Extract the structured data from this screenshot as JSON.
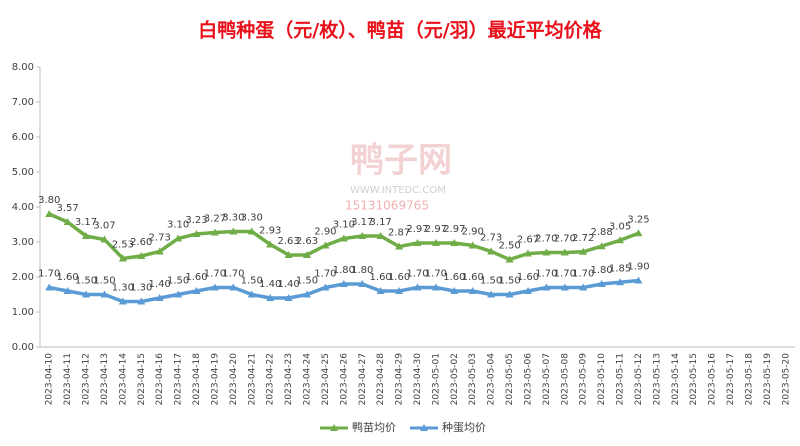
{
  "chart_data": {
    "type": "line",
    "title": "白鸭种蛋（元/枚）、鸭苗（元/羽）最近平均价格",
    "watermark": [
      "鸭子网",
      "WWW.INTEDC.COM",
      "15131069765"
    ],
    "categories": [
      "2023-04-10",
      "2023-04-11",
      "2023-04-12",
      "2023-04-13",
      "2023-04-14",
      "2023-04-15",
      "2023-04-16",
      "2023-04-17",
      "2023-04-18",
      "2023-04-19",
      "2023-04-20",
      "2023-04-21",
      "2023-04-22",
      "2023-04-23",
      "2023-04-24",
      "2023-04-25",
      "2023-04-26",
      "2023-04-27",
      "2023-04-28",
      "2023-04-29",
      "2023-04-30",
      "2023-05-01",
      "2023-05-02",
      "2023-05-03",
      "2023-05-04",
      "2023-05-05",
      "2023-05-06",
      "2023-05-07",
      "2023-05-08",
      "2023-05-09",
      "2023-05-10",
      "2023-05-11",
      "2023-05-12",
      "2023-05-13",
      "2023-05-14",
      "2023-05-15",
      "2023-05-16",
      "2023-05-17",
      "2023-05-18",
      "2023-05-19",
      "2023-05-20"
    ],
    "series": [
      {
        "name": "鸭苗均价",
        "color": "#70ad47",
        "values": [
          3.8,
          3.57,
          3.17,
          3.07,
          2.53,
          2.6,
          2.73,
          3.1,
          3.23,
          3.27,
          3.3,
          3.3,
          2.93,
          2.63,
          2.63,
          2.9,
          3.1,
          3.17,
          3.17,
          2.87,
          2.97,
          2.97,
          2.97,
          2.9,
          2.73,
          2.5,
          2.67,
          2.7,
          2.7,
          2.72,
          2.88,
          3.05,
          3.25,
          null,
          null,
          null,
          null,
          null,
          null,
          null,
          null
        ],
        "value_labels": [
          "3.80",
          "3.57",
          "3.17",
          "3.07",
          "2.53",
          "2.60",
          "2.73",
          "3.10",
          "3.23",
          "3.27",
          "3.30",
          "3.30",
          "2.93",
          "2.63",
          "2.63",
          "2.90",
          "3.10",
          "3.17",
          "3.17",
          "2.87",
          "2.97",
          "2.97",
          "2.97",
          "2.90",
          "2.73",
          "2.50",
          "2.67",
          "2.70",
          "2.70",
          "2.72",
          "2.88",
          "3.05",
          "3.25",
          null,
          null,
          null,
          null,
          null,
          null,
          null,
          null
        ]
      },
      {
        "name": "种蛋均价",
        "color": "#5b9bd5",
        "values": [
          1.7,
          1.6,
          1.5,
          1.5,
          1.3,
          1.3,
          1.4,
          1.5,
          1.6,
          1.7,
          1.7,
          1.5,
          1.4,
          1.4,
          1.5,
          1.7,
          1.8,
          1.8,
          1.6,
          1.6,
          1.7,
          1.7,
          1.6,
          1.6,
          1.5,
          1.5,
          1.6,
          1.7,
          1.7,
          1.7,
          1.8,
          1.85,
          1.9,
          null,
          null,
          null,
          null,
          null,
          null,
          null,
          null
        ],
        "value_labels": [
          "1.70",
          "1.60",
          "1.50",
          "1.50",
          "1.30",
          "1.30",
          "1.40",
          "1.50",
          "1.60",
          "1.70",
          "1.70",
          "1.50",
          "1.40",
          "1.40",
          "1.50",
          "1.70",
          "1.80",
          "1.80",
          "1.60",
          "1.60",
          "1.70",
          "1.70",
          "1.60",
          "1.60",
          "1.50",
          "1.50",
          "1.60",
          "1.70",
          "1.70",
          "1.70",
          "1.80",
          "1.85",
          "1.90",
          null,
          null,
          null,
          null,
          null,
          null,
          null,
          null
        ]
      }
    ],
    "ylim": [
      0,
      8
    ],
    "yticks": [
      {
        "value": 0,
        "label": "0.00"
      },
      {
        "value": 1,
        "label": "1.00"
      },
      {
        "value": 2,
        "label": "2.00"
      },
      {
        "value": 3,
        "label": "3.00"
      },
      {
        "value": 4,
        "label": "4.00"
      },
      {
        "value": 5,
        "label": "5.00"
      },
      {
        "value": 6,
        "label": "6.00"
      },
      {
        "value": 7,
        "label": "7.00"
      },
      {
        "value": 8,
        "label": "8.00"
      }
    ],
    "legend": "bottom"
  }
}
